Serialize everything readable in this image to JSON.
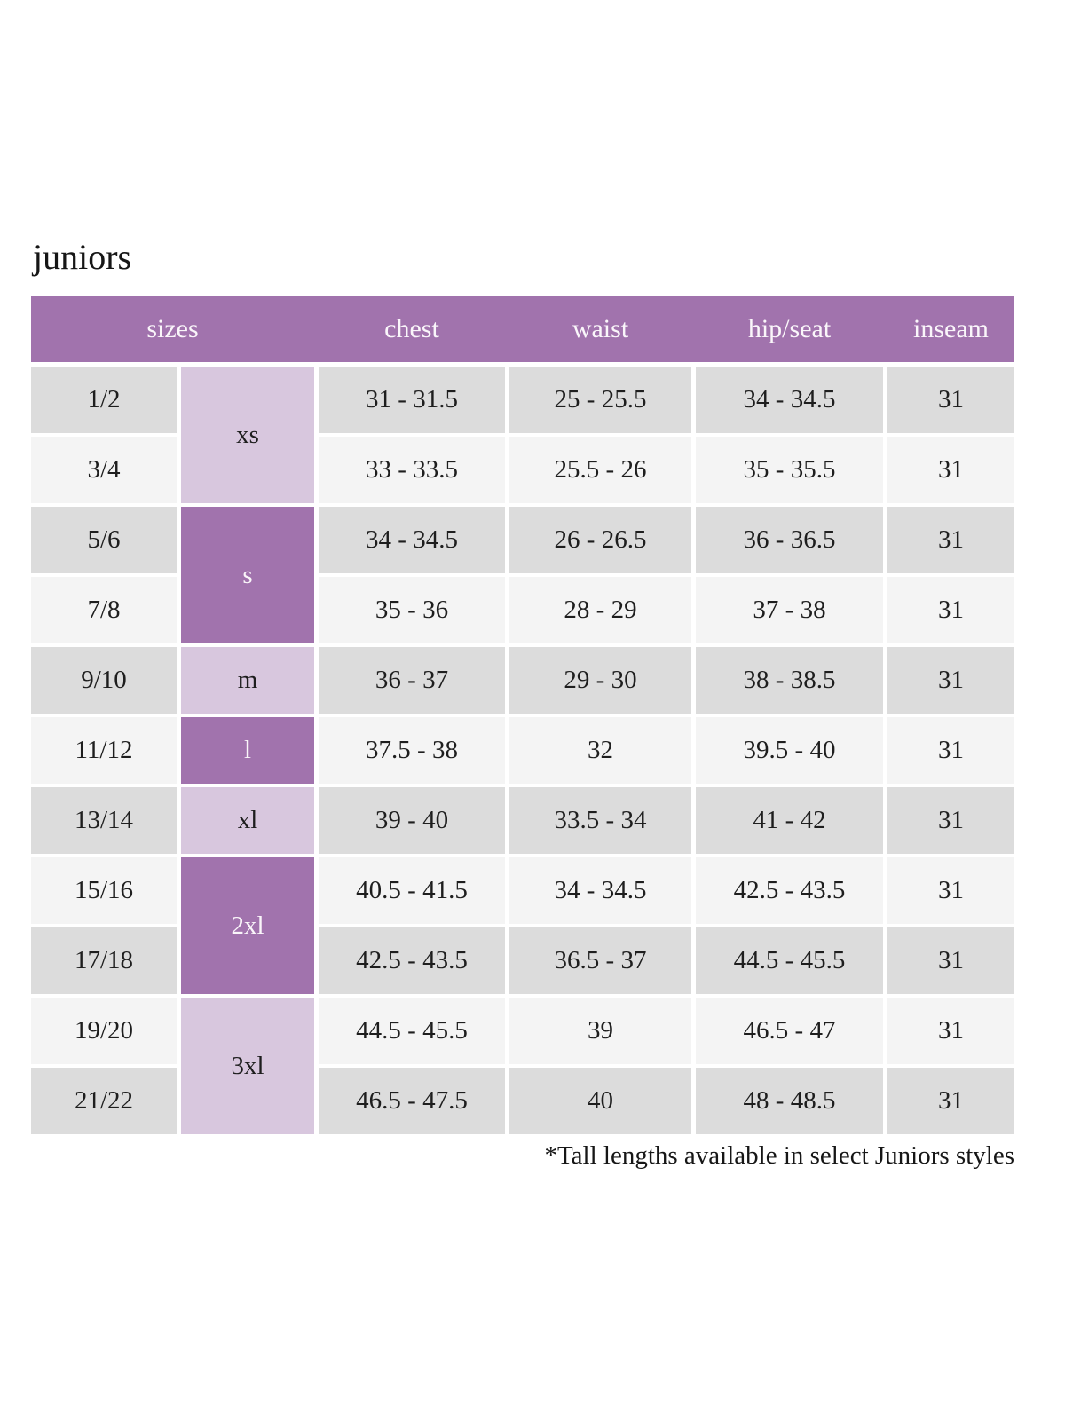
{
  "page": {
    "title": "juniors",
    "footnote": "*Tall lengths available in select Juniors styles"
  },
  "colors": {
    "header_bg": "#a173ad",
    "size_group_dark_bg": "#a173ad",
    "size_group_light_bg": "#d8c7de",
    "row_gray": "#dcdcdc",
    "row_light": "#f4f4f4",
    "header_text": "#faf6fa",
    "body_text": "#1e1e1e"
  },
  "chart_data": {
    "type": "table",
    "title": "juniors",
    "columns": [
      "sizes",
      "chest",
      "waist",
      "hip/seat",
      "inseam"
    ],
    "size_groups": [
      {
        "label": "xs",
        "row_span": 2,
        "shade": "light"
      },
      {
        "label": "s",
        "row_span": 2,
        "shade": "dark"
      },
      {
        "label": "m",
        "row_span": 1,
        "shade": "light"
      },
      {
        "label": "l",
        "row_span": 1,
        "shade": "dark"
      },
      {
        "label": "xl",
        "row_span": 1,
        "shade": "light"
      },
      {
        "label": "2xl",
        "row_span": 2,
        "shade": "dark"
      },
      {
        "label": "3xl",
        "row_span": 2,
        "shade": "light"
      }
    ],
    "rows": [
      {
        "size": "1/2",
        "chest": "31 - 31.5",
        "waist": "25 - 25.5",
        "hip_seat": "34 - 34.5",
        "inseam": "31"
      },
      {
        "size": "3/4",
        "chest": "33 - 33.5",
        "waist": "25.5 - 26",
        "hip_seat": "35 - 35.5",
        "inseam": "31"
      },
      {
        "size": "5/6",
        "chest": "34 - 34.5",
        "waist": "26 - 26.5",
        "hip_seat": "36 - 36.5",
        "inseam": "31"
      },
      {
        "size": "7/8",
        "chest": "35 - 36",
        "waist": "28 - 29",
        "hip_seat": "37 - 38",
        "inseam": "31"
      },
      {
        "size": "9/10",
        "chest": "36 - 37",
        "waist": "29 - 30",
        "hip_seat": "38 - 38.5",
        "inseam": "31"
      },
      {
        "size": "11/12",
        "chest": "37.5 - 38",
        "waist": "32",
        "hip_seat": "39.5 - 40",
        "inseam": "31"
      },
      {
        "size": "13/14",
        "chest": "39 - 40",
        "waist": "33.5 - 34",
        "hip_seat": "41 - 42",
        "inseam": "31"
      },
      {
        "size": "15/16",
        "chest": "40.5 - 41.5",
        "waist": "34 - 34.5",
        "hip_seat": "42.5 - 43.5",
        "inseam": "31"
      },
      {
        "size": "17/18",
        "chest": "42.5 - 43.5",
        "waist": "36.5 - 37",
        "hip_seat": "44.5 - 45.5",
        "inseam": "31"
      },
      {
        "size": "19/20",
        "chest": "44.5 - 45.5",
        "waist": "39",
        "hip_seat": "46.5 - 47",
        "inseam": "31"
      },
      {
        "size": "21/22",
        "chest": "46.5 - 47.5",
        "waist": "40",
        "hip_seat": "48 - 48.5",
        "inseam": "31"
      }
    ],
    "layout": {
      "row_shading_pattern": [
        "gray",
        "light"
      ],
      "grid": "white gutters between cells",
      "footnote_position": "bottom-right"
    }
  }
}
